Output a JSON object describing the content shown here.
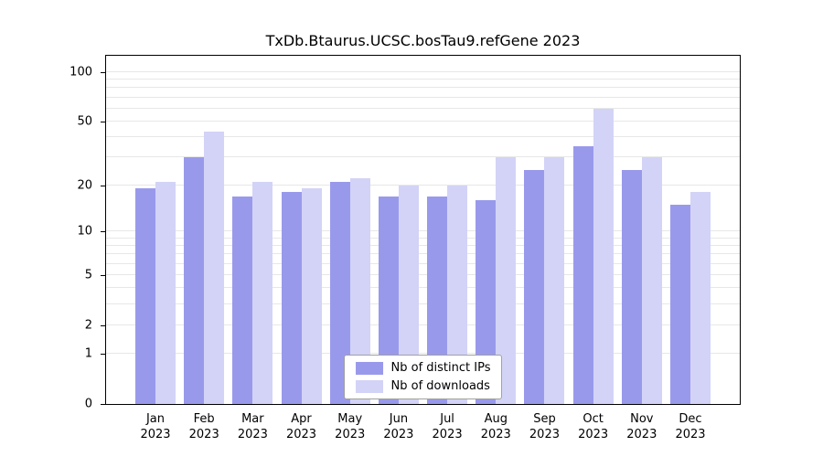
{
  "chart_data": {
    "type": "bar",
    "title": "TxDb.Btaurus.UCSC.bosTau9.refGene 2023",
    "categories": [
      "Jan",
      "Feb",
      "Mar",
      "Apr",
      "May",
      "Jun",
      "Jul",
      "Aug",
      "Sep",
      "Oct",
      "Nov",
      "Dec"
    ],
    "x_axis_year": "2023",
    "series": [
      {
        "name": "Nb of distinct IPs",
        "color_key": "distinct_ips",
        "values": [
          19,
          30,
          17,
          18,
          21,
          17,
          17,
          16,
          25,
          35,
          25,
          15
        ]
      },
      {
        "name": "Nb of downloads",
        "color_key": "downloads",
        "values": [
          21,
          43,
          21,
          19,
          22,
          20,
          20,
          30,
          30,
          60,
          30,
          18
        ]
      }
    ],
    "y_axis": {
      "ticks": [
        0,
        1,
        2,
        5,
        10,
        20,
        50,
        100
      ],
      "grid_values": [
        1,
        2,
        3,
        4,
        5,
        6,
        7,
        8,
        9,
        10,
        20,
        30,
        40,
        50,
        60,
        70,
        80,
        90,
        100
      ],
      "scale": "log1p",
      "top_value": 126,
      "min": 0
    },
    "legend_position": "bottom-center",
    "grid": "on"
  },
  "colors": {
    "distinct_ips": "#9999ec",
    "downloads": "#d3d3f7",
    "grid": "#e7e7e7",
    "axis": "#000000",
    "legend_border": "#a0a0a0",
    "background": "#ffffff"
  }
}
